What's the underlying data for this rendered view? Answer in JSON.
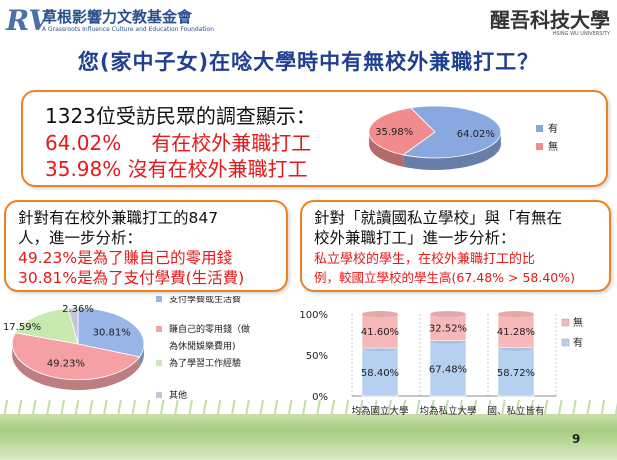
{
  "header": {
    "logo_mark": "RV",
    "org_name": "草根影響力文教基金會",
    "org_sub": "A Grassroots Influence Culture and Education Foundation",
    "univ_name": "醒吾科技大學",
    "univ_sub": "HSING WU UNIVERSITY"
  },
  "title": "您(家中子女)在唸大學時中有無校外兼職打工？",
  "summary": {
    "line1": "1323位受訪民眾的調查顯示：",
    "line2_pct": "64.02%",
    "line2_text": "有在校外兼職打工",
    "line3": "35.98% 沒有在校外兼職打工"
  },
  "pie_main": {
    "slices": [
      {
        "label": "有",
        "value": 64.02,
        "value_label": "64.02%",
        "color": "#8aa8e0"
      },
      {
        "label": "無",
        "value": 35.98,
        "value_label": "35.98%",
        "color": "#f28c8c"
      }
    ]
  },
  "box_left": {
    "line1": "針對有在校外兼職打工的847",
    "line2": "人，進一步分析：",
    "line3": "49.23%是為了賺自己的零用錢",
    "line4": "30.81%是為了支付學費(生活費)"
  },
  "box_right": {
    "line1": "針對「就讀國私立學校」與「有無在",
    "line2": "校外兼職打工」進一步分析：",
    "line3": "私立學校的學生，在校外兼職打工的比",
    "line4": "例，較國立學校的學生高(67.48% > 58.40%)"
  },
  "pie_reasons": {
    "slices": [
      {
        "label": "支付學費或生活費",
        "value": 30.81,
        "value_label": "30.81%",
        "color": "#9ab6e8"
      },
      {
        "label": "賺自己的零用錢（做為休閒娛樂費用)",
        "label_a": "賺自己的零用錢（做",
        "label_b": "為休閒娛樂費用)",
        "value": 49.23,
        "value_label": "49.23%",
        "color": "#f4a0a4"
      },
      {
        "label": "為了學習工作經驗",
        "value": 17.59,
        "value_label": "17.59%",
        "color": "#c8eab0"
      },
      {
        "label": "其他",
        "value": 2.36,
        "value_label": "2.36%",
        "color": "#c8c4d8"
      }
    ]
  },
  "chart_data": {
    "type": "bar",
    "stacked": true,
    "categories": [
      "均為國立大學",
      "均為私立大學",
      "國、私立皆有"
    ],
    "series": [
      {
        "name": "有",
        "values": [
          58.4,
          67.48,
          58.72
        ],
        "labels": [
          "58.40%",
          "67.48%",
          "58.72%"
        ],
        "color": "#b6d0f0"
      },
      {
        "name": "無",
        "values": [
          41.6,
          32.52,
          41.28
        ],
        "labels": [
          "41.60%",
          "32.52%",
          "41.28%"
        ],
        "color": "#f6b8b8"
      }
    ],
    "yticks": [
      "100%",
      "50%",
      "0%"
    ],
    "ylim": [
      0,
      100
    ],
    "legend": "right"
  },
  "page_number": "9"
}
